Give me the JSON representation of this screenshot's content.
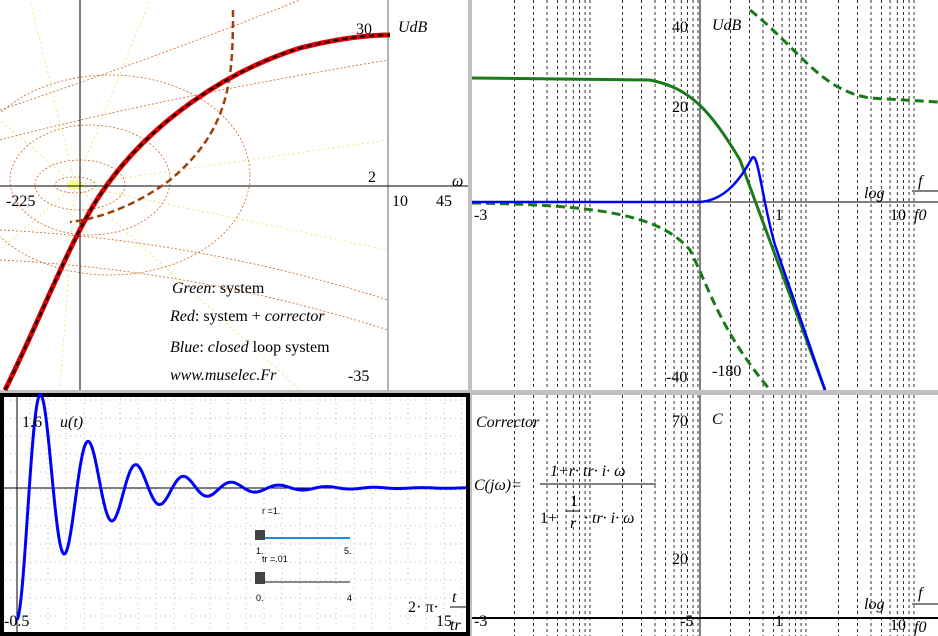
{
  "nichols": {
    "ymax": "30",
    "ylabel": "UdB",
    "y2": "2",
    "xlabel": "ω",
    "xmin": "-225",
    "x10": "10",
    "x45": "45",
    "ymin": "-35",
    "legend": [
      [
        "Green",
        ": system"
      ],
      [
        "Red",
        ": system + ",
        "corrector"
      ],
      [
        "Blue",
        ": ",
        "closed",
        " loop system"
      ],
      [
        "www.muselec.Fr"
      ]
    ]
  },
  "bode": {
    "ymax": "40",
    "ylabel": "UdB",
    "y20": "20",
    "log": "log",
    "f": "f",
    "f0": "f0",
    "xmin": "-3",
    "x1": "1",
    "x10": "10",
    "ymin": "-40",
    "phase": "-180"
  },
  "step": {
    "ymax": "1.6",
    "ylabel": "u(t)",
    "ymin": "-0.5",
    "xlabel": "2· π·",
    "t": "t",
    "tr": "tr",
    "xmax": "15",
    "slider_r": {
      "label": "r =1.",
      "min": "1.",
      "max": "5."
    },
    "slider_tr": {
      "label": "tr =.01",
      "min": "0.",
      "max": "4"
    }
  },
  "corrector": {
    "title": "Corrector",
    "ymax": "70",
    "ylabel": "C",
    "lhs": "C(jω)=",
    "num": "1+r· tr· i· ω",
    "den1": "1+",
    "one": "1",
    "r": "r",
    "den2": "· tr· i· ω",
    "y20": "20",
    "log": "log",
    "f": "f",
    "f0": "f0",
    "xmin": "-3",
    "xm5": "-5",
    "x1": "1",
    "x10": "10"
  }
}
